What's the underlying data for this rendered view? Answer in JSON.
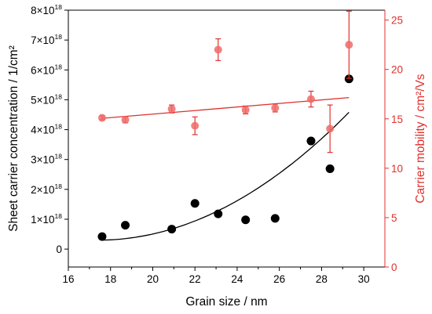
{
  "colors": {
    "black_series": "#000000",
    "red_series": "#e0302c",
    "red_marker_fill": "#ef6b68",
    "axis_black": "#000000"
  },
  "chart_data": {
    "type": "scatter",
    "title": "",
    "xlabel": "Grain size / nm",
    "ylabel_left": "Sheet carrier concentration / 1/cm²",
    "ylabel_right": "Carrier mobility / cm²/Vs",
    "xlim": [
      16,
      31
    ],
    "ylim_left": [
      -6e+17,
      8e+18
    ],
    "ylim_right": [
      0,
      26
    ],
    "x_ticks": [
      16,
      18,
      20,
      22,
      24,
      26,
      28,
      30
    ],
    "y_left_ticks": [
      {
        "value": 0,
        "base": "0",
        "exp": ""
      },
      {
        "value": 1e+18,
        "base": "1×10",
        "exp": "18"
      },
      {
        "value": 2e+18,
        "base": "2×10",
        "exp": "18"
      },
      {
        "value": 3e+18,
        "base": "3×10",
        "exp": "18"
      },
      {
        "value": 4e+18,
        "base": "4×10",
        "exp": "18"
      },
      {
        "value": 5e+18,
        "base": "5×10",
        "exp": "18"
      },
      {
        "value": 6e+18,
        "base": "6×10",
        "exp": "18"
      },
      {
        "value": 7e+18,
        "base": "7×10",
        "exp": "18"
      },
      {
        "value": 8e+18,
        "base": "8×10",
        "exp": "18"
      }
    ],
    "y_right_ticks": [
      0,
      5,
      10,
      15,
      20,
      25
    ],
    "grid": false,
    "series": [
      {
        "axis": "left",
        "color": "black",
        "points": [
          {
            "x": 17.6,
            "y": 4.2e+17,
            "err": 5e+16
          },
          {
            "x": 18.7,
            "y": 8e+17,
            "err": 5e+16
          },
          {
            "x": 20.9,
            "y": 6.7e+17,
            "err": 5e+16
          },
          {
            "x": 22.0,
            "y": 1.53e+18,
            "err": 7e+16
          },
          {
            "x": 23.1,
            "y": 1.18e+18,
            "err": 7e+16
          },
          {
            "x": 24.4,
            "y": 9.8e+17,
            "err": 5e+16
          },
          {
            "x": 25.8,
            "y": 1.03e+18,
            "err": 5e+16
          },
          {
            "x": 27.5,
            "y": 3.62e+18,
            "err": 1e+17
          },
          {
            "x": 28.4,
            "y": 2.69e+18,
            "err": 1e+17
          },
          {
            "x": 29.3,
            "y": 5.7e+18,
            "err": 1e+17
          }
        ],
        "fit": {
          "type": "quadratic",
          "points": [
            [
              17.6,
              3e+17
            ],
            [
              22.6,
              1.12e+18
            ],
            [
              29.3,
              4.58e+18
            ]
          ]
        }
      },
      {
        "axis": "right",
        "color": "red",
        "points": [
          {
            "x": 17.6,
            "y": 15.1,
            "err": 0.2
          },
          {
            "x": 18.7,
            "y": 14.9,
            "err": 0.3
          },
          {
            "x": 20.9,
            "y": 16.0,
            "err": 0.4
          },
          {
            "x": 22.0,
            "y": 14.3,
            "err": 0.9
          },
          {
            "x": 23.1,
            "y": 22.0,
            "err": 1.1
          },
          {
            "x": 24.4,
            "y": 15.9,
            "err": 0.4
          },
          {
            "x": 25.8,
            "y": 16.1,
            "err": 0.4
          },
          {
            "x": 27.5,
            "y": 17.0,
            "err": 0.8
          },
          {
            "x": 28.4,
            "y": 14.0,
            "err": 2.4
          },
          {
            "x": 29.3,
            "y": 22.5,
            "err": 3.4
          }
        ],
        "fit": {
          "type": "linear",
          "points": [
            [
              17.6,
              15.05
            ],
            [
              29.3,
              17.15
            ]
          ]
        }
      }
    ]
  }
}
